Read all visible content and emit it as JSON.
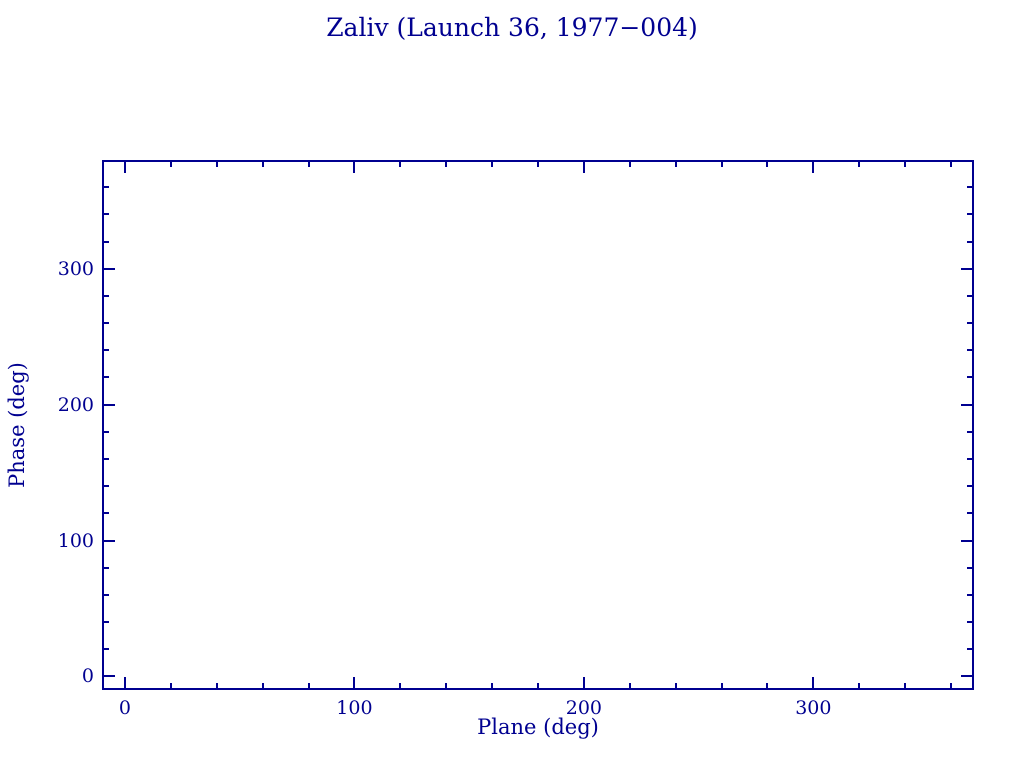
{
  "chart_data": {
    "type": "scatter",
    "title": "Zaliv (Launch 36, 1977−004)",
    "xlabel": "Plane (deg)",
    "ylabel": "Phase (deg)",
    "xlim": [
      -10,
      370
    ],
    "ylim": [
      -10,
      380
    ],
    "x_major_ticks": [
      0,
      100,
      200,
      300
    ],
    "y_major_ticks": [
      0,
      100,
      200,
      300
    ],
    "x_tick_labels": [
      "0",
      "100",
      "200",
      "300"
    ],
    "y_tick_labels": [
      "0",
      "100",
      "200",
      "300"
    ],
    "minor_tick_interval": 20,
    "grid": false,
    "legend": null,
    "series": [],
    "points": [],
    "accent_color": "#000090",
    "background_color": "#ffffff"
  }
}
